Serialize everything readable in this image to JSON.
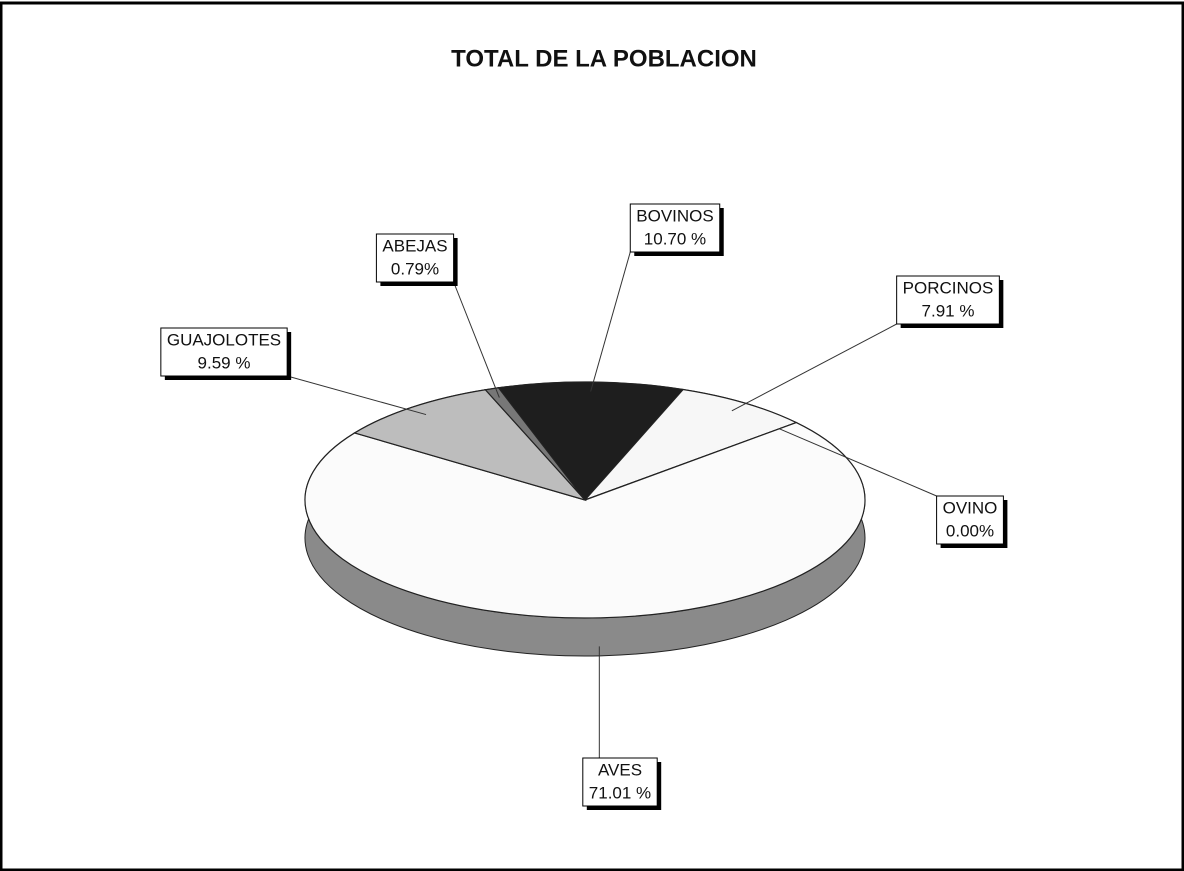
{
  "chart_data": {
    "type": "pie",
    "title": "TOTAL DE LA POBLACION",
    "categories": [
      "BOVINOS",
      "PORCINOS",
      "OVINO",
      "AVES",
      "GUAJOLOTES",
      "ABEJAS"
    ],
    "values": [
      10.7,
      7.91,
      0.0,
      71.01,
      9.59,
      0.79
    ],
    "value_labels": [
      "10.70 %",
      "7.91 %",
      "0.00%",
      "71.01 %",
      "9.59 %",
      "0.79%"
    ],
    "colors": [
      "#1e1e1e",
      "#f7f7f7",
      "#8a8a8a",
      "#fbfbfb",
      "#bdbdbd",
      "#777777"
    ]
  }
}
